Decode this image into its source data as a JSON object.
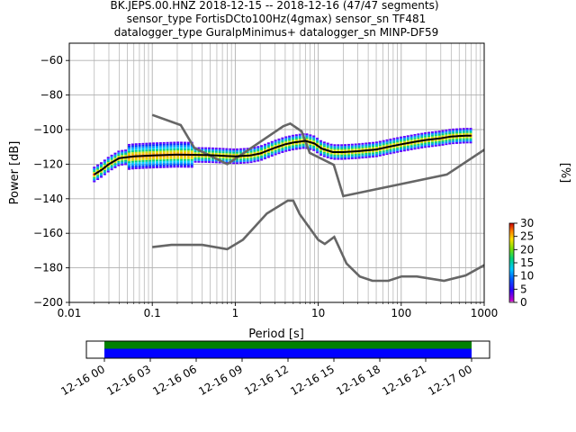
{
  "title_lines": [
    "BK.JEPS.00.HNZ   2018-12-15 -- 2018-12-16  (47/47 segments)",
    "sensor_type FortisDCto100Hz(4gmax) sensor_sn TF481",
    "datalogger_type GuralpMinimus+ datalogger_sn MINP-DF59"
  ],
  "colors": {
    "model_curve": "#666666",
    "mode_line": "#000000",
    "grid": "#b0b0b0",
    "coverage_data": "#0000ff",
    "coverage_used": "#008000"
  },
  "chart_data": {
    "type": "heatmap",
    "xlabel": "Period [s]",
    "ylabel": "Power [dB]",
    "xscale": "log",
    "xlim": [
      0.01,
      1000
    ],
    "ylim": [
      -200,
      -50
    ],
    "x_ticks": [
      0.01,
      0.1,
      1,
      10,
      100,
      1000
    ],
    "x_tick_labels": [
      "0.01",
      "0.1",
      "1",
      "10",
      "100",
      "1000"
    ],
    "y_ticks": [
      -200,
      -180,
      -160,
      -140,
      -120,
      -100,
      -80,
      -60
    ],
    "y_tick_labels": [
      "−200",
      "−180",
      "−160",
      "−140",
      "−120",
      "−100",
      "−80",
      "−60"
    ],
    "grid": true,
    "colorbar": {
      "label": "[%]",
      "range": [
        0,
        30
      ],
      "ticks": [
        0,
        5,
        10,
        15,
        20,
        25,
        30
      ],
      "tick_labels": [
        "0",
        "5",
        "10",
        "15",
        "20",
        "25",
        "30"
      ]
    },
    "noise_models": [
      {
        "points": [
          [
            0.1,
            -91.5
          ],
          [
            0.22,
            -97.4
          ],
          [
            0.32,
            -110.5
          ],
          [
            0.8,
            -120
          ],
          [
            3.8,
            -98
          ],
          [
            4.6,
            -96.5
          ],
          [
            6.3,
            -101
          ],
          [
            7.9,
            -113.5
          ],
          [
            15.4,
            -120.4
          ],
          [
            20,
            -138.5
          ],
          [
            354.8,
            -126
          ],
          [
            10000,
            -80
          ]
        ]
      },
      {
        "points": [
          [
            0.1,
            -168
          ],
          [
            0.17,
            -166.7
          ],
          [
            0.4,
            -166.7
          ],
          [
            0.8,
            -169.2
          ],
          [
            1.24,
            -163.7
          ],
          [
            2.4,
            -148.6
          ],
          [
            4.3,
            -141.1
          ],
          [
            5,
            -141.1
          ],
          [
            6,
            -149
          ],
          [
            10,
            -163.8
          ],
          [
            12,
            -166.2
          ],
          [
            15.6,
            -162.1
          ],
          [
            21.9,
            -177.5
          ],
          [
            31.6,
            -185
          ],
          [
            45,
            -187.5
          ],
          [
            70,
            -187.5
          ],
          [
            101,
            -185
          ],
          [
            154,
            -185
          ],
          [
            328,
            -187.5
          ],
          [
            600,
            -184.4
          ],
          [
            10000,
            -151.9
          ]
        ]
      }
    ],
    "mode_line": {
      "points": [
        [
          0.02,
          -126
        ],
        [
          0.025,
          -123
        ],
        [
          0.03,
          -120
        ],
        [
          0.04,
          -116.5
        ],
        [
          0.06,
          -115.5
        ],
        [
          0.1,
          -115
        ],
        [
          0.2,
          -114.5
        ],
        [
          0.5,
          -114.8
        ],
        [
          1,
          -115.5
        ],
        [
          1.5,
          -115
        ],
        [
          2,
          -113.8
        ],
        [
          2.5,
          -112
        ],
        [
          3,
          -110.5
        ],
        [
          4,
          -108.5
        ],
        [
          5,
          -107.5
        ],
        [
          7,
          -106.5
        ],
        [
          9,
          -108
        ],
        [
          11,
          -111
        ],
        [
          15,
          -113
        ],
        [
          20,
          -113
        ],
        [
          30,
          -112.5
        ],
        [
          50,
          -111.5
        ],
        [
          70,
          -110
        ],
        [
          100,
          -108.5
        ],
        [
          150,
          -107
        ],
        [
          200,
          -106
        ],
        [
          300,
          -105
        ],
        [
          400,
          -104
        ],
        [
          600,
          -103.5
        ],
        [
          700,
          -103.5
        ]
      ]
    },
    "coverage": {
      "xlim": [
        "12-16 00",
        "12-17 00"
      ],
      "ticks": [
        "12-16 00",
        "12-16 03",
        "12-16 06",
        "12-16 09",
        "12-16 12",
        "12-16 15",
        "12-16 18",
        "12-16 21",
        "12-17 00"
      ],
      "segments": [
        [
          "12-16 00",
          "12-17 00"
        ]
      ]
    }
  }
}
